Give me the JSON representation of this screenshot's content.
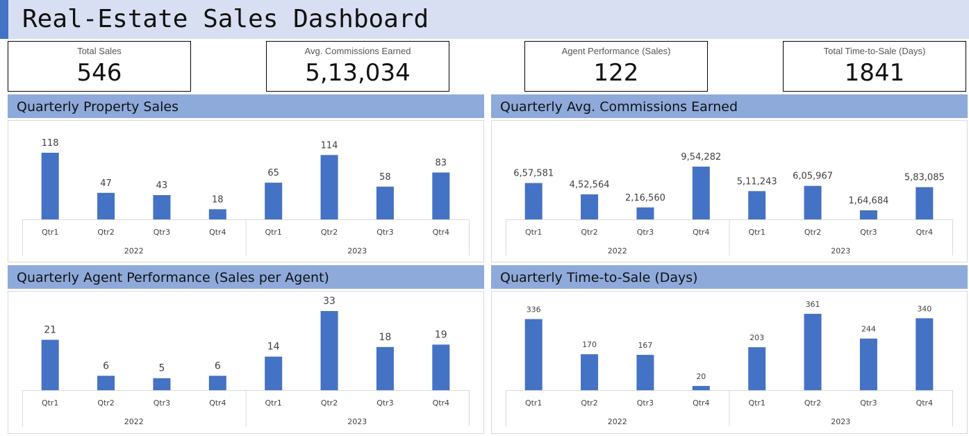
{
  "title": "Real-Estate Sales Dashboard",
  "colors": {
    "bar": "#4472c4",
    "header": "#8eaadb",
    "title_bg": "#d9dff2",
    "accent": "#4472c4"
  },
  "kpis": [
    {
      "label": "Total Sales",
      "value": "546"
    },
    {
      "label": "Avg. Commissions Earned",
      "value": "5,13,034"
    },
    {
      "label": "Agent Performance (Sales)",
      "value": "122"
    },
    {
      "label": "Total Time-to-Sale (Days)",
      "value": "1841"
    }
  ],
  "panels": [
    {
      "title": "Quarterly Property Sales"
    },
    {
      "title": "Quarterly Avg. Commissions Earned"
    },
    {
      "title": "Quarterly Agent Performance (Sales per Agent)"
    },
    {
      "title": "Quarterly Time-to-Sale (Days)"
    }
  ],
  "chart_data": [
    {
      "type": "bar",
      "title": "Quarterly Property Sales",
      "groups": [
        "2022",
        "2023"
      ],
      "categories": [
        "Qtr1",
        "Qtr2",
        "Qtr3",
        "Qtr4",
        "Qtr1",
        "Qtr2",
        "Qtr3",
        "Qtr4"
      ],
      "values": [
        118,
        47,
        43,
        18,
        65,
        114,
        58,
        83
      ],
      "data_labels": [
        "118",
        "47",
        "43",
        "18",
        "65",
        "114",
        "58",
        "83"
      ],
      "ylim": [
        0,
        118
      ],
      "grid": false
    },
    {
      "type": "bar",
      "title": "Quarterly Avg. Commissions Earned",
      "groups": [
        "2022",
        "2023"
      ],
      "categories": [
        "Qtr1",
        "Qtr2",
        "Qtr3",
        "Qtr4",
        "Qtr1",
        "Qtr2",
        "Qtr3",
        "Qtr4"
      ],
      "values": [
        657581,
        452564,
        216560,
        954282,
        511243,
        605967,
        164684,
        583085
      ],
      "data_labels": [
        "6,57,581",
        "4,52,564",
        "2,16,560",
        "9,54,282",
        "5,11,243",
        "6,05,967",
        "1,64,684",
        "5,83,085"
      ],
      "ylim": [
        0,
        954282
      ],
      "grid": false
    },
    {
      "type": "bar",
      "title": "Quarterly Agent Performance (Sales per Agent)",
      "groups": [
        "2022",
        "2023"
      ],
      "categories": [
        "Qtr1",
        "Qtr2",
        "Qtr3",
        "Qtr4",
        "Qtr1",
        "Qtr2",
        "Qtr3",
        "Qtr4"
      ],
      "values": [
        21,
        6,
        5,
        6,
        14,
        33,
        18,
        19
      ],
      "data_labels": [
        "21",
        "6",
        "5",
        "6",
        "14",
        "33",
        "18",
        "19"
      ],
      "ylim": [
        0,
        33
      ],
      "grid": false
    },
    {
      "type": "bar",
      "title": "Quarterly Time-to-Sale (Days)",
      "groups": [
        "2022",
        "2023"
      ],
      "categories": [
        "Qtr1",
        "Qtr2",
        "Qtr3",
        "Qtr4",
        "Qtr1",
        "Qtr2",
        "Qtr3",
        "Qtr4"
      ],
      "values": [
        336,
        170,
        167,
        20,
        203,
        361,
        244,
        340
      ],
      "data_labels": [
        "336",
        "170",
        "167",
        "20",
        "203",
        "361",
        "244",
        "340"
      ],
      "ylim": [
        0,
        361
      ],
      "grid": false
    }
  ]
}
